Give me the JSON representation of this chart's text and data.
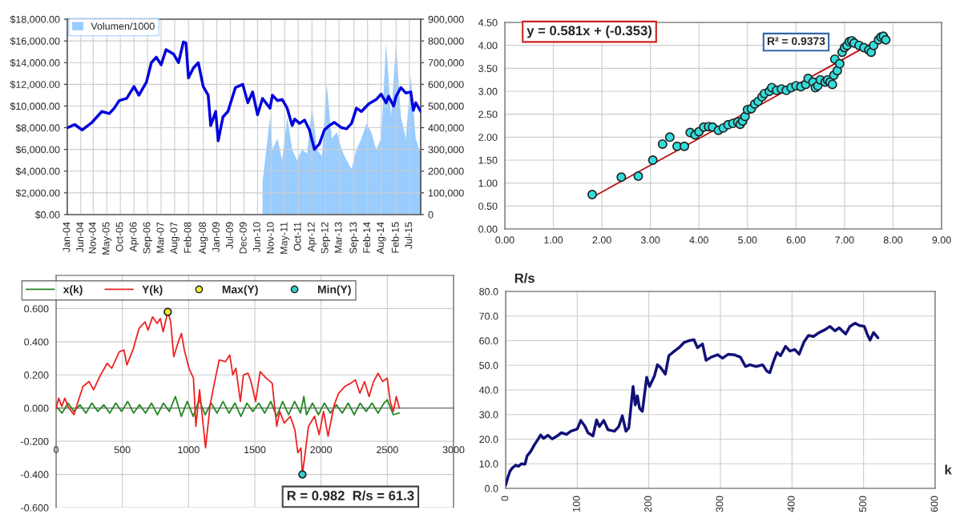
{
  "chart_data": [
    {
      "type": "line",
      "legend": "top left",
      "grid": true,
      "xlim": [
        "2004-01-01",
        "2015-12-01"
      ],
      "xticks": [
        {
          "value": "2004-01-01",
          "label": "Jan-04"
        },
        {
          "value": "2004-06-15",
          "label": "Jun-04"
        },
        {
          "value": "2004-11-15",
          "label": "Nov-04"
        },
        {
          "value": "2005-05-01",
          "label": "May-05"
        },
        {
          "value": "2005-10-15",
          "label": "Oct-05"
        },
        {
          "value": "2006-04-01",
          "label": "Apr-06"
        },
        {
          "value": "2006-09-15",
          "label": "Sep-06"
        },
        {
          "value": "2007-03-01",
          "label": "Mar-07"
        },
        {
          "value": "2007-08-15",
          "label": "Aug-07"
        },
        {
          "value": "2008-02-01",
          "label": "Feb-08"
        },
        {
          "value": "2008-08-01",
          "label": "Aug-08"
        },
        {
          "value": "2009-01-15",
          "label": "Jan-09"
        },
        {
          "value": "2009-07-01",
          "label": "Jul-09"
        },
        {
          "value": "2009-12-15",
          "label": "Dec-09"
        },
        {
          "value": "2010-06-01",
          "label": "Jun-10"
        },
        {
          "value": "2010-11-15",
          "label": "Nov-10"
        },
        {
          "value": "2011-05-01",
          "label": "May-11"
        },
        {
          "value": "2011-10-15",
          "label": "Oct-11"
        },
        {
          "value": "2012-04-01",
          "label": "Apr-12"
        },
        {
          "value": "2012-09-15",
          "label": "Sep-12"
        },
        {
          "value": "2013-03-01",
          "label": "Mar-13"
        },
        {
          "value": "2013-09-01",
          "label": "Sep-13"
        },
        {
          "value": "2014-02-15",
          "label": "Feb-14"
        },
        {
          "value": "2014-08-01",
          "label": "Aug-14"
        },
        {
          "value": "2015-02-01",
          "label": "Feb-15"
        },
        {
          "value": "2015-07-15",
          "label": "Jul-15"
        }
      ],
      "ylim": [
        0,
        18000
      ],
      "yticks": [
        {
          "value": 0,
          "label": "$0.00"
        },
        {
          "value": 2000,
          "label": "$2,000.00"
        },
        {
          "value": 4000,
          "label": "$4,000.00"
        },
        {
          "value": 6000,
          "label": "$6,000.00"
        },
        {
          "value": 8000,
          "label": "$8,000.00"
        },
        {
          "value": 10000,
          "label": "$10,000.00"
        },
        {
          "value": 12000,
          "label": "$12,000.00"
        },
        {
          "value": 14000,
          "label": "$14,000.00"
        },
        {
          "value": 16000,
          "label": "$16,000.00"
        },
        {
          "value": 18000,
          "label": "$18,000.00"
        }
      ],
      "y2lim": [
        0,
        900000
      ],
      "y2ticks": [
        0,
        {
          "value": 100000,
          "label": "100,000"
        },
        {
          "value": 200000,
          "label": "200,000"
        },
        {
          "value": 300000,
          "label": "300,000"
        },
        {
          "value": 400000,
          "label": "400,000"
        },
        {
          "value": 500000,
          "label": "500,000"
        },
        {
          "value": 600000,
          "label": "600,000"
        },
        {
          "value": 700000,
          "label": "700,000"
        },
        {
          "value": 800000,
          "label": "800,000"
        },
        {
          "value": 900000,
          "label": "900,000"
        }
      ],
      "series": [
        {
          "name": "Volumen/1000",
          "type": "area",
          "axis": "y2",
          "color": "#99ccff",
          "x": [
            "2010-08",
            "2010-09",
            "2010-11",
            "2010-12",
            "2011-02",
            "2011-04",
            "2011-06",
            "2011-08",
            "2011-10",
            "2011-12",
            "2012-02",
            "2012-04",
            "2012-06",
            "2012-08",
            "2012-10",
            "2012-12",
            "2013-02",
            "2013-04",
            "2013-06",
            "2013-08",
            "2013-10",
            "2013-12",
            "2014-02",
            "2014-04",
            "2014-06",
            "2014-08",
            "2014-10",
            "2014-12",
            "2015-02",
            "2015-04",
            "2015-06",
            "2015-08",
            "2015-10",
            "2015-12"
          ],
          "values": [
            150000,
            250000,
            450000,
            300000,
            350000,
            250000,
            450000,
            300000,
            250000,
            300000,
            280000,
            500000,
            300000,
            270000,
            600000,
            350000,
            380000,
            300000,
            250000,
            210000,
            300000,
            350000,
            420000,
            380000,
            300000,
            350000,
            790000,
            450000,
            790000,
            450000,
            350000,
            640000,
            350000,
            280000
          ]
        },
        {
          "color": "#0000dd",
          "x": [
            "2004-01",
            "2004-04",
            "2004-07",
            "2004-11",
            "2005-03",
            "2005-06",
            "2005-08",
            "2005-10",
            "2006-01",
            "2006-04",
            "2006-06",
            "2006-09",
            "2006-11",
            "2007-01",
            "2007-03",
            "2007-05",
            "2007-08",
            "2007-10",
            "2007-12",
            "2008-01",
            "2008-02",
            "2008-04",
            "2008-06",
            "2008-08",
            "2008-10",
            "2008-11",
            "2009-01",
            "2009-02",
            "2009-04",
            "2009-06",
            "2009-09",
            "2009-12",
            "2010-02",
            "2010-04",
            "2010-06",
            "2010-08",
            "2010-11",
            "2010-12",
            "2011-02",
            "2011-04",
            "2011-06",
            "2011-08",
            "2011-09",
            "2011-11",
            "2012-01",
            "2012-03",
            "2012-05",
            "2012-07",
            "2012-09",
            "2012-11",
            "2013-01",
            "2013-04",
            "2013-06",
            "2013-08",
            "2013-10",
            "2013-12",
            "2014-03",
            "2014-06",
            "2014-08",
            "2014-10",
            "2014-11",
            "2015-01",
            "2015-02",
            "2015-04",
            "2015-06",
            "2015-08",
            "2015-09",
            "2015-10",
            "2015-12"
          ],
          "values": [
            8000,
            8300,
            7800,
            8500,
            9500,
            9300,
            9800,
            10500,
            10700,
            11800,
            11000,
            12200,
            14000,
            14500,
            13800,
            15200,
            14800,
            14000,
            15900,
            15800,
            12600,
            13500,
            14000,
            11800,
            11000,
            8200,
            9500,
            6800,
            9000,
            9500,
            11700,
            12000,
            10300,
            11300,
            9200,
            10700,
            9800,
            11000,
            10500,
            10600,
            9800,
            8200,
            8800,
            8400,
            8700,
            7800,
            6000,
            6500,
            7800,
            8200,
            8500,
            8000,
            7900,
            8400,
            9800,
            9500,
            10200,
            10600,
            11100,
            10300,
            10900,
            10000,
            10900,
            11700,
            11200,
            11300,
            9600,
            10300,
            9500
          ]
        }
      ]
    },
    {
      "type": "scatter",
      "grid": true,
      "xlim": [
        0,
        9
      ],
      "xticks": [
        {
          "value": 0,
          "label": "0.00"
        },
        {
          "value": 1,
          "label": "1.00"
        },
        {
          "value": 2,
          "label": "2.00"
        },
        {
          "value": 3,
          "label": "3.00"
        },
        {
          "value": 4,
          "label": "4.00"
        },
        {
          "value": 5,
          "label": "5.00"
        },
        {
          "value": 6,
          "label": "6.00"
        },
        {
          "value": 7,
          "label": "7.00"
        },
        {
          "value": 8,
          "label": "8.00"
        },
        {
          "value": 9,
          "label": "9.00"
        }
      ],
      "ylim": [
        0,
        4.5
      ],
      "yticks": [
        {
          "value": 0,
          "label": "0.00"
        },
        {
          "value": 0.5,
          "label": "0.50"
        },
        {
          "value": 1,
          "label": "1.00"
        },
        {
          "value": 1.5,
          "label": "1.50"
        },
        {
          "value": 2,
          "label": "2.00"
        },
        {
          "value": 2.5,
          "label": "2.50"
        },
        {
          "value": 3,
          "label": "3.00"
        },
        {
          "value": 3.5,
          "label": "3.50"
        },
        {
          "value": 4,
          "label": "4.00"
        },
        {
          "value": 4.5,
          "label": "4.50"
        }
      ],
      "annotations": [
        "y = 0.581x + (-0.353)",
        "R² = 0.9373"
      ],
      "series": [
        {
          "marker": "circle",
          "color": "#33dddd",
          "x": [
            1.8,
            2.4,
            2.75,
            3.05,
            3.25,
            3.4,
            3.55,
            3.7,
            3.82,
            3.92,
            4.0,
            4.1,
            4.2,
            4.28,
            4.4,
            4.5,
            4.6,
            4.7,
            4.8,
            4.85,
            4.9,
            4.95,
            5.0,
            5.08,
            5.15,
            5.22,
            5.3,
            5.35,
            5.45,
            5.5,
            5.6,
            5.7,
            5.8,
            5.9,
            6.0,
            6.1,
            6.2,
            6.25,
            6.35,
            6.4,
            6.45,
            6.5,
            6.6,
            6.65,
            6.7,
            6.75,
            6.78,
            6.8,
            6.85,
            6.9,
            6.95,
            7.0,
            7.05,
            7.1,
            7.15,
            7.2,
            7.3,
            7.4,
            7.5,
            7.55,
            7.6,
            7.7,
            7.75,
            7.8,
            7.85
          ],
          "values": [
            0.75,
            1.13,
            1.15,
            1.5,
            1.85,
            2.0,
            1.8,
            1.8,
            2.1,
            2.05,
            2.12,
            2.22,
            2.23,
            2.22,
            2.15,
            2.2,
            2.27,
            2.3,
            2.33,
            2.28,
            2.35,
            2.45,
            2.6,
            2.62,
            2.72,
            2.78,
            2.88,
            2.95,
            3.0,
            3.08,
            3.02,
            3.05,
            3.02,
            3.08,
            3.12,
            3.1,
            3.15,
            3.28,
            3.2,
            3.08,
            3.12,
            3.25,
            3.2,
            3.25,
            3.2,
            3.15,
            3.35,
            3.7,
            3.45,
            3.6,
            3.85,
            3.95,
            4.0,
            4.08,
            4.1,
            4.05,
            4.0,
            3.95,
            3.9,
            3.85,
            4.0,
            4.12,
            4.18,
            4.2,
            4.12
          ]
        },
        {
          "type": "line",
          "color": "#bb1111",
          "x": [
            1.8,
            7.85
          ],
          "values": [
            0.69,
            4.21
          ]
        }
      ]
    },
    {
      "type": "line",
      "grid": true,
      "legend": "top left",
      "xlim": [
        0,
        3000
      ],
      "xticks": [
        0,
        500,
        1000,
        1500,
        2000,
        2500,
        3000
      ],
      "ylim": [
        -0.6,
        0.8
      ],
      "yticks": [
        {
          "value": -0.6,
          "label": "-0.600"
        },
        {
          "value": -0.4,
          "label": "-0.400"
        },
        {
          "value": -0.2,
          "label": "-0.200"
        },
        {
          "value": 0,
          "label": "0.000"
        },
        {
          "value": 0.2,
          "label": "0.200"
        },
        {
          "value": 0.4,
          "label": "0.400"
        },
        {
          "value": 0.6,
          "label": "0.600"
        }
      ],
      "annotations": [
        "R = 0.982  R/s = 61.3"
      ],
      "series": [
        {
          "name": "x(k)",
          "color": "#228822",
          "x": [
            0,
            45,
            90,
            135,
            180,
            225,
            270,
            315,
            360,
            405,
            450,
            495,
            540,
            585,
            630,
            675,
            720,
            765,
            810,
            855,
            900,
            945,
            990,
            1035,
            1080,
            1125,
            1170,
            1215,
            1260,
            1305,
            1350,
            1395,
            1440,
            1485,
            1530,
            1575,
            1620,
            1665,
            1710,
            1755,
            1800,
            1845,
            1870,
            1890,
            1935,
            1980,
            2025,
            2070,
            2115,
            2160,
            2205,
            2250,
            2295,
            2340,
            2385,
            2430,
            2475,
            2500,
            2545,
            2590
          ],
          "values": [
            0.01,
            -0.03,
            0.03,
            -0.02,
            0.02,
            -0.03,
            0.03,
            -0.02,
            0.02,
            -0.03,
            0.03,
            -0.02,
            0.04,
            -0.03,
            0.02,
            -0.03,
            0.03,
            -0.04,
            0.03,
            -0.02,
            0.07,
            -0.05,
            0.04,
            -0.05,
            0.05,
            -0.04,
            0.03,
            -0.03,
            0.04,
            -0.03,
            0.03,
            -0.05,
            0.03,
            -0.02,
            0.03,
            -0.03,
            0.04,
            -0.05,
            0.04,
            -0.04,
            0.04,
            -0.03,
            0.07,
            -0.04,
            0.03,
            -0.04,
            0.03,
            -0.03,
            0.02,
            -0.03,
            0.03,
            -0.04,
            0.03,
            -0.02,
            0.03,
            -0.03,
            0.03,
            0.05,
            -0.04,
            -0.03
          ]
        },
        {
          "name": "Y(k)",
          "color": "#ee2222",
          "x": [
            0,
            20,
            43,
            66,
            89,
            135,
            158,
            203,
            249,
            283,
            329,
            386,
            420,
            477,
            512,
            534,
            580,
            626,
            671,
            694,
            728,
            763,
            786,
            808,
            843,
            865,
            888,
            923,
            946,
            968,
            1003,
            1037,
            1055,
            1083,
            1128,
            1163,
            1197,
            1231,
            1277,
            1311,
            1334,
            1357,
            1391,
            1414,
            1449,
            1471,
            1506,
            1540,
            1586,
            1631,
            1665,
            1688,
            1722,
            1768,
            1802,
            1825,
            1848,
            1859,
            1882,
            1905,
            1951,
            1985,
            2019,
            2053,
            2099,
            2133,
            2179,
            2225,
            2259,
            2293,
            2328,
            2362,
            2396,
            2430,
            2465,
            2499,
            2522,
            2545,
            2568,
            2591
          ],
          "values": [
            0.0,
            0.06,
            0.01,
            0.06,
            0.01,
            -0.04,
            0.02,
            0.13,
            0.16,
            0.11,
            0.19,
            0.27,
            0.24,
            0.34,
            0.35,
            0.26,
            0.35,
            0.48,
            0.52,
            0.47,
            0.55,
            0.51,
            0.54,
            0.46,
            0.58,
            0.52,
            0.31,
            0.4,
            0.45,
            0.35,
            0.24,
            0.18,
            -0.11,
            0.11,
            -0.24,
            0.02,
            0.16,
            0.29,
            0.28,
            0.32,
            0.2,
            0.24,
            0.04,
            0.2,
            0.21,
            0.16,
            0.04,
            0.22,
            0.18,
            0.15,
            -0.11,
            -0.02,
            -0.09,
            -0.05,
            -0.13,
            -0.27,
            -0.24,
            -0.4,
            -0.26,
            -0.11,
            -0.05,
            -0.16,
            -0.02,
            -0.17,
            0.02,
            0.09,
            0.13,
            0.15,
            0.17,
            0.09,
            0.16,
            0.07,
            0.16,
            0.21,
            0.16,
            0.18,
            0.04,
            -0.02,
            0.07,
            0.0
          ]
        },
        {
          "name": "Max(Y)",
          "type": "scatter",
          "marker": "circle",
          "color": "#eeee33",
          "x": [
            843
          ],
          "values": [
            0.58
          ]
        },
        {
          "name": "Min(Y)",
          "type": "scatter",
          "marker": "circle",
          "color": "#33cccc",
          "x": [
            1859
          ],
          "values": [
            -0.4
          ]
        }
      ]
    },
    {
      "type": "line",
      "grid": true,
      "ylabel": "R/s",
      "xlabel": "k",
      "xlim": [
        0,
        600
      ],
      "xticks": [
        0,
        100,
        200,
        300,
        400,
        500,
        600
      ],
      "ylim": [
        0,
        80
      ],
      "yticks": [
        {
          "value": 0,
          "label": "0.0"
        },
        {
          "value": 10,
          "label": "10.0"
        },
        {
          "value": 20,
          "label": "20.0"
        },
        {
          "value": 30,
          "label": "30.0"
        },
        {
          "value": 40,
          "label": "40.0"
        },
        {
          "value": 50,
          "label": "50.0"
        },
        {
          "value": 60,
          "label": "60.0"
        },
        {
          "value": 70,
          "label": "70.0"
        },
        {
          "value": 80,
          "label": "80.0"
        }
      ],
      "series": [
        {
          "color": "#111177",
          "x": [
            0,
            3,
            6,
            9,
            14,
            18,
            22,
            27,
            30,
            35,
            40,
            44,
            49,
            53,
            59,
            65,
            72,
            78,
            85,
            91,
            100,
            105,
            111,
            115,
            122,
            127,
            131,
            137,
            143,
            152,
            158,
            163,
            168,
            172,
            178,
            181,
            184,
            187,
            191,
            197,
            201,
            208,
            212,
            217,
            223,
            228,
            236,
            242,
            249,
            255,
            263,
            268,
            275,
            280,
            287,
            296,
            303,
            311,
            320,
            328,
            335,
            341,
            350,
            359,
            365,
            369,
            374,
            379,
            384,
            391,
            397,
            404,
            410,
            417,
            423,
            430,
            438,
            447,
            453,
            460,
            466,
            475,
            481,
            488,
            494,
            501,
            505,
            509,
            514,
            520
          ],
          "values": [
            1.3,
            4.4,
            6.9,
            8.2,
            9.4,
            9.0,
            10.0,
            9.8,
            13.2,
            15.0,
            17.6,
            19.4,
            21.7,
            20.3,
            21.6,
            20.1,
            21.3,
            22.6,
            21.9,
            23.2,
            24.1,
            27.6,
            25.1,
            22.6,
            21.3,
            27.8,
            25.1,
            27.6,
            23.8,
            23.2,
            25.1,
            29.5,
            23.2,
            24.5,
            41.4,
            33.9,
            37.6,
            32.6,
            31.3,
            45.1,
            41.4,
            45.8,
            50.2,
            48.9,
            46.4,
            53.9,
            55.8,
            57.1,
            59.2,
            59.9,
            60.4,
            57.1,
            58.7,
            52.0,
            53.3,
            54.3,
            52.9,
            54.5,
            54.2,
            53.3,
            49.5,
            50.2,
            49.5,
            50.2,
            47.6,
            47.0,
            51.4,
            55.2,
            53.9,
            57.7,
            55.8,
            56.4,
            54.5,
            59.6,
            62.1,
            61.7,
            63.3,
            64.6,
            65.8,
            64.0,
            65.2,
            62.7,
            65.8,
            67.1,
            66.2,
            65.8,
            62.7,
            60.2,
            63.3,
            61.2
          ]
        }
      ]
    }
  ]
}
